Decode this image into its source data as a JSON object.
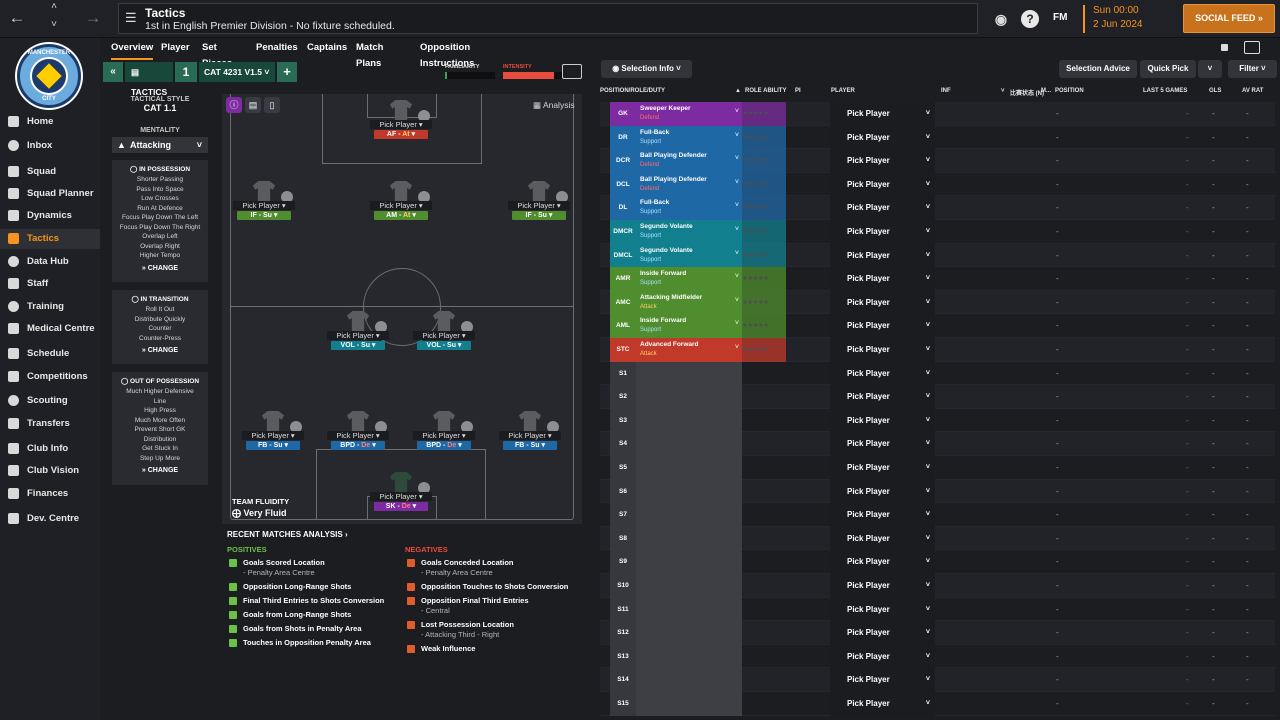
{
  "header": {
    "title": "Tactics",
    "subtitle": "1st in English Premier Division - No fixture scheduled.",
    "fm_label": "FM",
    "date_time": "Sun 00:00",
    "date": "2 Jun 2024",
    "social_feed": "SOCIAL FEED"
  },
  "club": {
    "crest_top": "MANCHESTER",
    "crest_bottom": "CITY"
  },
  "sidebar": {
    "items": [
      "Home",
      "Inbox",
      "Squad",
      "Squad Planner",
      "Dynamics",
      "Tactics",
      "Data Hub",
      "Staff",
      "Training",
      "Medical Centre",
      "Schedule",
      "Competitions",
      "Scouting",
      "Transfers",
      "Club Info",
      "Club Vision",
      "Finances",
      "Dev. Centre"
    ],
    "active": "Tactics"
  },
  "subtabs": [
    "Overview",
    "Player",
    "Set Pieces",
    "Penalties",
    "Captains",
    "Match Plans",
    "Opposition Instructions"
  ],
  "tactic_bar": {
    "label": "TACTICS",
    "slot": "1",
    "name": "CAT 4231 V1.5",
    "add": "+"
  },
  "familiarity": {
    "label": "FAMILIARITY",
    "value": 0.04,
    "intensity_label": "INTENSITY",
    "intensity_value": 0.85
  },
  "tactical_style": {
    "label": "TACTICAL STYLE",
    "value": "CAT 1.1"
  },
  "mentality": {
    "label": "MENTALITY",
    "value": "Attacking"
  },
  "in_possession": {
    "title": "IN POSSESSION",
    "items": [
      "Shorter Passing",
      "Pass Into Space",
      "Low Crosses",
      "Run At Defence",
      "Focus Play Down The Left",
      "Focus Play Down The Right",
      "Overlap Left",
      "Overlap Right",
      "Higher Tempo"
    ],
    "change": "CHANGE"
  },
  "in_transition": {
    "title": "IN TRANSITION",
    "items": [
      "Roll It Out",
      "Distribute Quickly",
      "Counter",
      "Counter-Press"
    ],
    "change": "CHANGE"
  },
  "out_of_possession": {
    "title": "OUT OF POSSESSION",
    "items": [
      "Much Higher Defensive",
      "Line",
      "High Press",
      "Much More Often",
      "Prevent Short GK",
      "Distribution",
      "Get Stuck In",
      "Step Up More"
    ],
    "change": "CHANGE"
  },
  "pitch": {
    "analysis_label": "Analysis",
    "pick_label": "Pick Player",
    "slots": [
      {
        "role": "AF",
        "duty": "At",
        "color": "red"
      },
      {
        "role": "IF",
        "duty": "Su",
        "color": "green"
      },
      {
        "role": "AM",
        "duty": "At",
        "color": "green"
      },
      {
        "role": "IF",
        "duty": "Su",
        "color": "green"
      },
      {
        "role": "VOL",
        "duty": "Su",
        "color": "cyan"
      },
      {
        "role": "VOL",
        "duty": "Su",
        "color": "cyan"
      },
      {
        "role": "FB",
        "duty": "Su",
        "color": "blue"
      },
      {
        "role": "BPD",
        "duty": "De",
        "color": "blue"
      },
      {
        "role": "BPD",
        "duty": "De",
        "color": "blue"
      },
      {
        "role": "FB",
        "duty": "Su",
        "color": "blue"
      },
      {
        "role": "SK",
        "duty": "De",
        "color": "purple"
      }
    ],
    "fluidity_label": "TEAM FLUIDITY",
    "fluidity_value": "Very Fluid"
  },
  "recent_analysis": {
    "title": "RECENT MATCHES ANALYSIS",
    "positives_label": "POSITIVES",
    "negatives_label": "NEGATIVES",
    "positives": [
      {
        "text": "Goals Scored Location",
        "sub": "- Penalty Area Centre"
      },
      {
        "text": "Opposition Long-Range Shots",
        "sub": ""
      },
      {
        "text": "Final Third Entries to Shots Conversion",
        "sub": ""
      },
      {
        "text": "Goals from Long-Range Shots",
        "sub": ""
      },
      {
        "text": "Goals from Shots in Penalty Area",
        "sub": ""
      },
      {
        "text": "Touches in Opposition Penalty Area",
        "sub": ""
      }
    ],
    "negatives": [
      {
        "text": "Goals Conceded Location",
        "sub": "- Penalty Area Centre"
      },
      {
        "text": "Opposition Touches to Shots Conversion",
        "sub": ""
      },
      {
        "text": "Opposition Final Third Entries",
        "sub": "- Central"
      },
      {
        "text": "Lost Possession Location",
        "sub": "- Attacking Third - Right"
      },
      {
        "text": "Weak Influence",
        "sub": ""
      }
    ]
  },
  "right_toolbar": {
    "selection_info": "Selection Info",
    "selection_advice": "Selection Advice",
    "quick_pick": "Quick Pick",
    "filter": "Filter"
  },
  "columns": {
    "position": "POSITION/ROLE/DUTY",
    "role_ability": "ROLE ABILITY",
    "pi": "PI",
    "player": "PLAYER",
    "inf": "INF",
    "cjk": "比赛状态 (N)",
    "m": "M...",
    "position2": "POSITION",
    "last5": "LAST 5 GAMES",
    "gls": "GLS",
    "av_rat": "AV RAT"
  },
  "colors": {
    "accent": "#f7931e",
    "gk": "#7d2ba0",
    "def": "#1f68a6",
    "dm": "#117f8e",
    "am": "#4f8d2e",
    "st": "#c0392b"
  },
  "rows": [
    {
      "pos": "GK",
      "role": "Sweeper Keeper",
      "duty": "Defend",
      "group": "gk"
    },
    {
      "pos": "DR",
      "role": "Full-Back",
      "duty": "Support",
      "group": "def"
    },
    {
      "pos": "DCR",
      "role": "Ball Playing Defender",
      "duty": "Defend",
      "group": "def"
    },
    {
      "pos": "DCL",
      "role": "Ball Playing Defender",
      "duty": "Defend",
      "group": "def"
    },
    {
      "pos": "DL",
      "role": "Full-Back",
      "duty": "Support",
      "group": "def"
    },
    {
      "pos": "DMCR",
      "role": "Segundo Volante",
      "duty": "Support",
      "group": "dm"
    },
    {
      "pos": "DMCL",
      "role": "Segundo Volante",
      "duty": "Support",
      "group": "dm"
    },
    {
      "pos": "AMR",
      "role": "Inside Forward",
      "duty": "Support",
      "group": "am"
    },
    {
      "pos": "AMC",
      "role": "Attacking Midfielder",
      "duty": "Attack",
      "group": "am"
    },
    {
      "pos": "AML",
      "role": "Inside Forward",
      "duty": "Support",
      "group": "am"
    },
    {
      "pos": "STC",
      "role": "Advanced Forward",
      "duty": "Attack",
      "group": "st"
    },
    {
      "pos": "S1",
      "role": "",
      "duty": "",
      "group": "sub"
    },
    {
      "pos": "S2",
      "role": "",
      "duty": "",
      "group": "sub"
    },
    {
      "pos": "S3",
      "role": "",
      "duty": "",
      "group": "sub"
    },
    {
      "pos": "S4",
      "role": "",
      "duty": "",
      "group": "sub"
    },
    {
      "pos": "S5",
      "role": "",
      "duty": "",
      "group": "sub"
    },
    {
      "pos": "S6",
      "role": "",
      "duty": "",
      "group": "sub"
    },
    {
      "pos": "S7",
      "role": "",
      "duty": "",
      "group": "sub"
    },
    {
      "pos": "S8",
      "role": "",
      "duty": "",
      "group": "sub"
    },
    {
      "pos": "S9",
      "role": "",
      "duty": "",
      "group": "sub"
    },
    {
      "pos": "S10",
      "role": "",
      "duty": "",
      "group": "sub"
    },
    {
      "pos": "S11",
      "role": "",
      "duty": "",
      "group": "sub"
    },
    {
      "pos": "S12",
      "role": "",
      "duty": "",
      "group": "sub"
    },
    {
      "pos": "S13",
      "role": "",
      "duty": "",
      "group": "sub"
    },
    {
      "pos": "S14",
      "role": "",
      "duty": "",
      "group": "sub"
    },
    {
      "pos": "S15",
      "role": "",
      "duty": "",
      "group": "sub"
    }
  ],
  "row_cells": {
    "pick": "Pick Player",
    "dash": "-",
    "stars": "★★★★★"
  }
}
